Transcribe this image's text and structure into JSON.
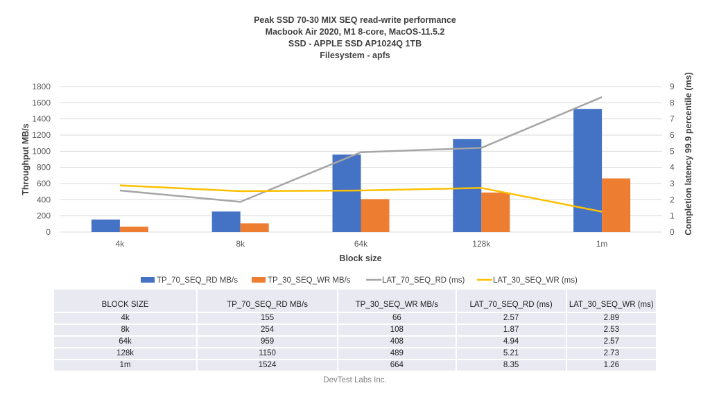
{
  "chart_data": {
    "type": "bar",
    "title_lines": [
      "Peak SSD 70-30 MIX SEQ read-write performance",
      "Macbook Air 2020, M1 8-core, MacOS-11.5.2",
      "SSD - APPLE SSD AP1024Q 1TB",
      "Filesystem - apfs"
    ],
    "xlabel": "Block size",
    "ylabel": "Throughput MB/s",
    "y2label": "Completion latency 99.9 percentile (ms)",
    "categories": [
      "4k",
      "8k",
      "64k",
      "128k",
      "1m"
    ],
    "ylim": [
      0,
      1800
    ],
    "yticks": [
      0,
      200,
      400,
      600,
      800,
      1000,
      1200,
      1400,
      1600,
      1800
    ],
    "y2lim": [
      0,
      9
    ],
    "y2ticks": [
      0,
      1,
      2,
      3,
      4,
      5,
      6,
      7,
      8,
      9
    ],
    "grid": true,
    "legend_position": "bottom",
    "series": [
      {
        "name": "TP_70_SEQ_RD MB/s",
        "kind": "bar",
        "axis": "left",
        "color": "#4472c4",
        "values": [
          155,
          254,
          959,
          1150,
          1524
        ]
      },
      {
        "name": "TP_30_SEQ_WR MB/s",
        "kind": "bar",
        "axis": "left",
        "color": "#ed7d31",
        "values": [
          66,
          108,
          408,
          489,
          664
        ]
      },
      {
        "name": "LAT_70_SEQ_RD (ms)",
        "kind": "line",
        "axis": "right",
        "color": "#a5a5a5",
        "values": [
          2.57,
          1.87,
          4.94,
          5.21,
          8.35
        ]
      },
      {
        "name": "LAT_30_SEQ_WR (ms)",
        "kind": "line",
        "axis": "right",
        "color": "#ffc000",
        "values": [
          2.89,
          2.53,
          2.57,
          2.73,
          1.26
        ]
      }
    ]
  },
  "table": {
    "headers": [
      "BLOCK SIZE",
      "TP_70_SEQ_RD MB/s",
      "TP_30_SEQ_WR MB/s",
      "LAT_70_SEQ_RD (ms)",
      "LAT_30_SEQ_WR (ms)"
    ],
    "rows": [
      [
        "4k",
        "155",
        "66",
        "2.57",
        "2.89"
      ],
      [
        "8k",
        "254",
        "108",
        "1.87",
        "2.53"
      ],
      [
        "64k",
        "959",
        "408",
        "4.94",
        "2.57"
      ],
      [
        "128k",
        "1150",
        "489",
        "5.21",
        "2.73"
      ],
      [
        "1m",
        "1524",
        "664",
        "8.35",
        "1.26"
      ]
    ]
  },
  "footer": "DevTest Labs Inc."
}
